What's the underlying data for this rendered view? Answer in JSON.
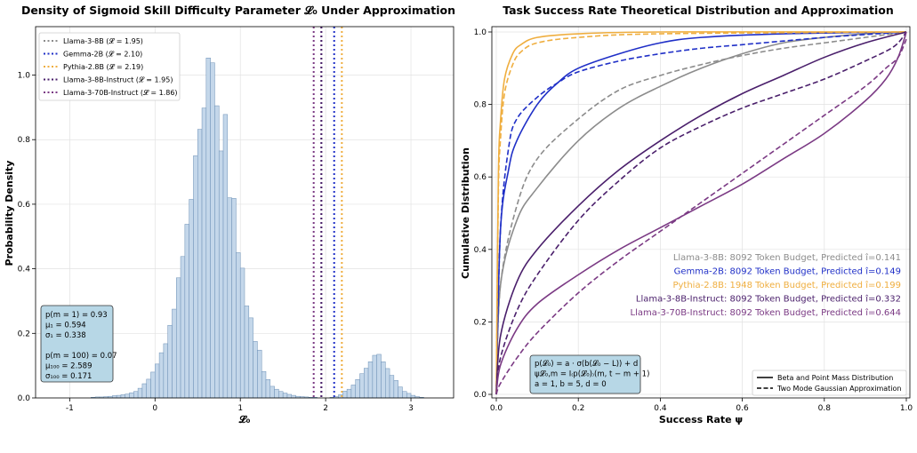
{
  "chart_data": [
    {
      "type": "bar",
      "title": "Density of Sigmoid Skill Difficulty Parameter 𝓛₀ Under Approximation",
      "xlabel": "𝓛₀",
      "ylabel": "Probability Density",
      "xlim": [
        -1.4,
        3.5
      ],
      "ylim": [
        0,
        1.15
      ],
      "xticks": [
        -1,
        0,
        1,
        2,
        3
      ],
      "yticks": [
        0.0,
        0.2,
        0.4,
        0.6,
        0.8,
        1.0
      ],
      "grid": true,
      "bar_color": "#c4d7ea",
      "bar_edge": "#6b8fb5",
      "bin_width": 0.05,
      "bins": [
        [
          -0.75,
          0.002
        ],
        [
          -0.7,
          0.003
        ],
        [
          -0.65,
          0.003
        ],
        [
          -0.6,
          0.004
        ],
        [
          -0.55,
          0.005
        ],
        [
          -0.5,
          0.007
        ],
        [
          -0.45,
          0.008
        ],
        [
          -0.4,
          0.01
        ],
        [
          -0.35,
          0.012
        ],
        [
          -0.3,
          0.016
        ],
        [
          -0.25,
          0.02
        ],
        [
          -0.2,
          0.03
        ],
        [
          -0.15,
          0.044
        ],
        [
          -0.1,
          0.058
        ],
        [
          -0.05,
          0.08
        ],
        [
          0.0,
          0.105
        ],
        [
          0.05,
          0.14
        ],
        [
          0.1,
          0.168
        ],
        [
          0.15,
          0.225
        ],
        [
          0.2,
          0.275
        ],
        [
          0.25,
          0.372
        ],
        [
          0.3,
          0.438
        ],
        [
          0.35,
          0.538
        ],
        [
          0.4,
          0.615
        ],
        [
          0.45,
          0.75
        ],
        [
          0.5,
          0.832
        ],
        [
          0.55,
          0.898
        ],
        [
          0.6,
          1.053
        ],
        [
          0.65,
          1.038
        ],
        [
          0.7,
          0.905
        ],
        [
          0.75,
          0.765
        ],
        [
          0.8,
          0.878
        ],
        [
          0.85,
          0.62
        ],
        [
          0.9,
          0.618
        ],
        [
          0.95,
          0.45
        ],
        [
          1.0,
          0.402
        ],
        [
          1.05,
          0.285
        ],
        [
          1.1,
          0.248
        ],
        [
          1.15,
          0.175
        ],
        [
          1.2,
          0.148
        ],
        [
          1.25,
          0.082
        ],
        [
          1.3,
          0.057
        ],
        [
          1.35,
          0.036
        ],
        [
          1.4,
          0.027
        ],
        [
          1.45,
          0.02
        ],
        [
          1.5,
          0.015
        ],
        [
          1.55,
          0.011
        ],
        [
          1.6,
          0.008
        ],
        [
          1.65,
          0.005
        ],
        [
          1.7,
          0.004
        ],
        [
          1.75,
          0.003
        ],
        [
          1.8,
          0.002
        ],
        [
          1.85,
          0.002
        ],
        [
          2.05,
          0.002
        ],
        [
          2.1,
          0.004
        ],
        [
          2.15,
          0.01
        ],
        [
          2.2,
          0.021
        ],
        [
          2.25,
          0.027
        ],
        [
          2.3,
          0.04
        ],
        [
          2.35,
          0.057
        ],
        [
          2.4,
          0.075
        ],
        [
          2.45,
          0.092
        ],
        [
          2.5,
          0.112
        ],
        [
          2.55,
          0.132
        ],
        [
          2.6,
          0.135
        ],
        [
          2.65,
          0.112
        ],
        [
          2.7,
          0.091
        ],
        [
          2.75,
          0.07
        ],
        [
          2.8,
          0.054
        ],
        [
          2.85,
          0.034
        ],
        [
          2.9,
          0.02
        ],
        [
          2.95,
          0.014
        ],
        [
          3.0,
          0.008
        ],
        [
          3.05,
          0.004
        ],
        [
          3.1,
          0.002
        ]
      ],
      "vlines": [
        {
          "name": "Llama-3-8B (𝓛 = 1.95)",
          "x": 1.95,
          "color": "#8c8c8c"
        },
        {
          "name": "Gemma-2B (𝓛 = 2.10)",
          "x": 2.1,
          "color": "#1f2fc7"
        },
        {
          "name": "Pythia-2.8B (𝓛 = 2.19)",
          "x": 2.19,
          "color": "#efae3f"
        },
        {
          "name": "Llama-3-8B-Instruct (𝓛 = 1.95)",
          "x": 1.95,
          "color": "#4a1f6b"
        },
        {
          "name": "Llama-3-70B-Instruct (𝓛 = 1.86)",
          "x": 1.86,
          "color": "#7b3a84"
        }
      ],
      "legend_position": "top-left",
      "stats_box": [
        "p(m = 1) = 0.93",
        "μ₁ = 0.594",
        "σ₁ = 0.338",
        "",
        "p(m = 100) = 0.07",
        "μ₁₀₀ = 2.589",
        "σ₁₀₀ = 0.171"
      ],
      "stats_color": "#b7d7e6"
    },
    {
      "type": "line",
      "title": "Task Success Rate Theoretical Distribution and Approximation",
      "xlabel": "Success Rate ψ",
      "ylabel": "Cumulative Distribution",
      "xlim": [
        0,
        1
      ],
      "ylim": [
        0,
        1
      ],
      "xticks": [
        0.0,
        0.2,
        0.4,
        0.6,
        0.8,
        1.0
      ],
      "yticks": [
        0.0,
        0.2,
        0.4,
        0.6,
        0.8,
        1.0
      ],
      "grid": true,
      "series": [
        {
          "model": "Llama-3-8B",
          "color": "#8c8c8c",
          "solid": [
            [
              0,
              0
            ],
            [
              0.01,
              0.3
            ],
            [
              0.05,
              0.48
            ],
            [
              0.1,
              0.57
            ],
            [
              0.2,
              0.7
            ],
            [
              0.3,
              0.79
            ],
            [
              0.4,
              0.85
            ],
            [
              0.5,
              0.9
            ],
            [
              0.6,
              0.94
            ],
            [
              0.7,
              0.97
            ],
            [
              0.8,
              0.985
            ],
            [
              0.9,
              0.995
            ],
            [
              1,
              1
            ]
          ],
          "dashed": [
            [
              0,
              0
            ],
            [
              0.01,
              0.3
            ],
            [
              0.05,
              0.52
            ],
            [
              0.1,
              0.65
            ],
            [
              0.2,
              0.76
            ],
            [
              0.3,
              0.84
            ],
            [
              0.4,
              0.88
            ],
            [
              0.5,
              0.91
            ],
            [
              0.6,
              0.935
            ],
            [
              0.7,
              0.955
            ],
            [
              0.8,
              0.97
            ],
            [
              0.9,
              0.985
            ],
            [
              1,
              1
            ]
          ]
        },
        {
          "model": "Gemma-2B",
          "color": "#1f2fc7",
          "solid": [
            [
              0,
              0
            ],
            [
              0.01,
              0.45
            ],
            [
              0.03,
              0.62
            ],
            [
              0.05,
              0.7
            ],
            [
              0.1,
              0.8
            ],
            [
              0.15,
              0.86
            ],
            [
              0.2,
              0.9
            ],
            [
              0.3,
              0.94
            ],
            [
              0.4,
              0.97
            ],
            [
              0.5,
              0.985
            ],
            [
              0.7,
              0.995
            ],
            [
              1,
              1
            ]
          ],
          "dashed": [
            [
              0,
              0
            ],
            [
              0.01,
              0.45
            ],
            [
              0.03,
              0.68
            ],
            [
              0.05,
              0.76
            ],
            [
              0.1,
              0.82
            ],
            [
              0.15,
              0.86
            ],
            [
              0.2,
              0.89
            ],
            [
              0.3,
              0.92
            ],
            [
              0.4,
              0.94
            ],
            [
              0.5,
              0.955
            ],
            [
              0.6,
              0.965
            ],
            [
              0.7,
              0.975
            ],
            [
              0.8,
              0.985
            ],
            [
              0.9,
              0.993
            ],
            [
              1,
              1
            ]
          ]
        },
        {
          "model": "Pythia-2.8B",
          "color": "#efae3f",
          "solid": [
            [
              0,
              0
            ],
            [
              0.005,
              0.6
            ],
            [
              0.01,
              0.75
            ],
            [
              0.02,
              0.87
            ],
            [
              0.04,
              0.94
            ],
            [
              0.06,
              0.965
            ],
            [
              0.1,
              0.985
            ],
            [
              0.2,
              0.995
            ],
            [
              0.4,
              1.0
            ],
            [
              1,
              1
            ]
          ],
          "dashed": [
            [
              0,
              0
            ],
            [
              0.005,
              0.55
            ],
            [
              0.01,
              0.7
            ],
            [
              0.02,
              0.83
            ],
            [
              0.04,
              0.91
            ],
            [
              0.06,
              0.945
            ],
            [
              0.1,
              0.97
            ],
            [
              0.2,
              0.985
            ],
            [
              0.4,
              0.995
            ],
            [
              1,
              1
            ]
          ]
        },
        {
          "model": "Llama-3-8B-Instruct",
          "color": "#4a1f6b",
          "solid": [
            [
              0,
              0
            ],
            [
              0.01,
              0.16
            ],
            [
              0.05,
              0.31
            ],
            [
              0.1,
              0.4
            ],
            [
              0.2,
              0.52
            ],
            [
              0.3,
              0.62
            ],
            [
              0.4,
              0.7
            ],
            [
              0.5,
              0.77
            ],
            [
              0.6,
              0.83
            ],
            [
              0.7,
              0.88
            ],
            [
              0.8,
              0.93
            ],
            [
              0.9,
              0.97
            ],
            [
              1,
              1
            ]
          ],
          "dashed": [
            [
              0,
              0
            ],
            [
              0.01,
              0.1
            ],
            [
              0.05,
              0.23
            ],
            [
              0.1,
              0.33
            ],
            [
              0.2,
              0.48
            ],
            [
              0.3,
              0.59
            ],
            [
              0.4,
              0.68
            ],
            [
              0.5,
              0.74
            ],
            [
              0.6,
              0.79
            ],
            [
              0.7,
              0.83
            ],
            [
              0.8,
              0.87
            ],
            [
              0.9,
              0.92
            ],
            [
              0.97,
              0.96
            ],
            [
              1,
              1
            ]
          ]
        },
        {
          "model": "Llama-3-70B-Instruct",
          "color": "#7b3a84",
          "solid": [
            [
              0,
              0
            ],
            [
              0.01,
              0.08
            ],
            [
              0.05,
              0.18
            ],
            [
              0.1,
              0.25
            ],
            [
              0.2,
              0.33
            ],
            [
              0.3,
              0.4
            ],
            [
              0.4,
              0.46
            ],
            [
              0.5,
              0.52
            ],
            [
              0.6,
              0.58
            ],
            [
              0.7,
              0.65
            ],
            [
              0.8,
              0.72
            ],
            [
              0.9,
              0.81
            ],
            [
              0.95,
              0.87
            ],
            [
              0.98,
              0.93
            ],
            [
              1,
              1
            ]
          ],
          "dashed": [
            [
              0,
              0
            ],
            [
              0.01,
              0.03
            ],
            [
              0.05,
              0.1
            ],
            [
              0.1,
              0.17
            ],
            [
              0.2,
              0.28
            ],
            [
              0.3,
              0.37
            ],
            [
              0.4,
              0.45
            ],
            [
              0.5,
              0.53
            ],
            [
              0.6,
              0.61
            ],
            [
              0.7,
              0.69
            ],
            [
              0.8,
              0.77
            ],
            [
              0.9,
              0.85
            ],
            [
              0.95,
              0.9
            ],
            [
              0.98,
              0.93
            ],
            [
              1,
              0.98
            ]
          ]
        }
      ],
      "annotations": [
        {
          "text": "Llama-3-8B: 8092 Token Budget, Predicted î=0.141",
          "color": "#8c8c8c"
        },
        {
          "text": "Gemma-2B: 8092 Token Budget, Predicted î=0.149",
          "color": "#1f2fc7"
        },
        {
          "text": "Pythia-2.8B: 1948 Token Budget, Predicted î=0.199",
          "color": "#efae3f"
        },
        {
          "text": "Llama-3-8B-Instruct: 8092 Token Budget, Predicted î=0.332",
          "color": "#4a1f6b"
        },
        {
          "text": "Llama-3-70B-Instruct: 8092 Token Budget, Predicted î=0.644",
          "color": "#7b3a84"
        }
      ],
      "formula_box": [
        "p(𝓛₀) = a · σ(b(𝓛₀ − L)) + d",
        "ψ𝓛₀,m = I₍p(𝓛₀)₎(m, t − m + 1)",
        "a = 1,  b = 5,  d = 0"
      ],
      "formula_color": "#b7d7e6",
      "legend": [
        {
          "name": "Beta and Point Mass Distribution",
          "style": "solid"
        },
        {
          "name": "Two Mode Gaussian Approximation",
          "style": "dashed"
        }
      ],
      "legend_position": "bottom-right"
    }
  ]
}
